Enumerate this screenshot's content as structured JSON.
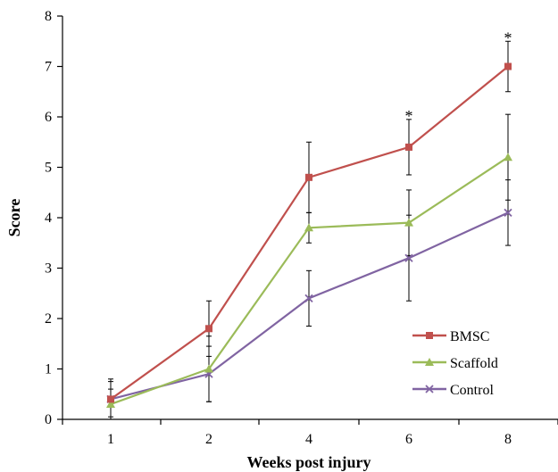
{
  "chart_data": {
    "type": "line",
    "title": "",
    "xlabel": "Weeks post injury",
    "ylabel": "Score",
    "categories": [
      "1",
      "2",
      "4",
      "6",
      "8"
    ],
    "ylim": [
      0,
      8
    ],
    "yticks": [
      "0",
      "1",
      "2",
      "3",
      "4",
      "5",
      "6",
      "7",
      "8"
    ],
    "grid": false,
    "legend_position": "bottom-right",
    "series": [
      {
        "name": "BMSC",
        "color": "#c0504d",
        "marker": "square",
        "values": [
          0.4,
          1.8,
          4.8,
          5.4,
          7.0
        ],
        "error": [
          0.4,
          0.55,
          0.7,
          0.55,
          0.5
        ]
      },
      {
        "name": "Scaffold",
        "color": "#9bbb59",
        "marker": "triangle",
        "values": [
          0.3,
          1.0,
          3.8,
          3.9,
          5.2
        ],
        "error": [
          0.3,
          0.65,
          0.3,
          0.65,
          0.85
        ]
      },
      {
        "name": "Control",
        "color": "#8064a2",
        "marker": "x",
        "values": [
          0.4,
          0.9,
          2.4,
          3.2,
          4.1
        ],
        "error": [
          0.35,
          0.55,
          0.55,
          0.85,
          0.65
        ]
      }
    ],
    "annotations": [
      {
        "category": "6",
        "y": 5.95,
        "text": "*"
      },
      {
        "category": "8",
        "y": 7.5,
        "text": "*"
      }
    ]
  }
}
